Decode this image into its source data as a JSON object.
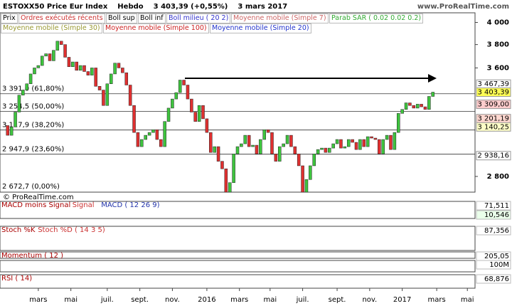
{
  "header": {
    "title": "ESTOXX50 Price Eur Index",
    "period": "Hebdo",
    "last": "3 403,39 (+0,55%)",
    "date": "3 mars 2017",
    "site": "www.ProRealTime.com"
  },
  "legend": {
    "row1": [
      "Prix",
      "Ordres exécutés récents",
      "Boll sup",
      "Boll inf",
      "Boll milieu ( 20 2)",
      "Moyenne mobile (Simple 7)",
      "Parab SAR ( 0.02 0.02 0.2)"
    ],
    "row2": [
      "Moyenne mobile (Simple 30)",
      "Moyenne mobile (Simple 100)",
      "Moyenne mobile (Simple 20)"
    ]
  },
  "watermark": "© ProRealTime.com",
  "chart_data": {
    "type": "candlestick",
    "log_scale": true,
    "close": [
      3150,
      3080,
      3140,
      3250,
      3380,
      3420,
      3470,
      3550,
      3600,
      3620,
      3700,
      3720,
      3660,
      3750,
      3830,
      3800,
      3690,
      3610,
      3650,
      3580,
      3620,
      3570,
      3540,
      3600,
      3450,
      3420,
      3300,
      3470,
      3550,
      3640,
      3600,
      3560,
      3460,
      3300,
      3100,
      3000,
      3050,
      3080,
      3100,
      3120,
      3050,
      3000,
      3180,
      3280,
      3350,
      3400,
      3500,
      3460,
      3350,
      3250,
      3180,
      3300,
      3200,
      3100,
      2960,
      3000,
      2900,
      2850,
      2700,
      2760,
      2950,
      3000,
      3020,
      3080,
      3000,
      3010,
      2950,
      3050,
      3120,
      3100,
      2950,
      2900,
      3000,
      3020,
      3080,
      3000,
      2950,
      2870,
      2700,
      2780,
      2870,
      2950,
      2980,
      2990,
      2960,
      2990,
      3020,
      3050,
      2990,
      3000,
      3050,
      3030,
      2980,
      3050,
      3000,
      3070,
      3060,
      3050,
      2950,
      3050,
      3080,
      2980,
      3100,
      3240,
      3270,
      3320,
      3300,
      3280,
      3310,
      3290,
      3270,
      3370,
      3403.39
    ],
    "xlim": [
      -1,
      123
    ],
    "xticks": [
      {
        "value": 9,
        "label": "mars"
      },
      {
        "value": 17.5,
        "label": "mai"
      },
      {
        "value": 27,
        "label": "juil."
      },
      {
        "value": 35.5,
        "label": "sept."
      },
      {
        "value": 44,
        "label": "nov."
      },
      {
        "value": 53,
        "label": "2016"
      },
      {
        "value": 61.5,
        "label": "mars"
      },
      {
        "value": 69.5,
        "label": "mai"
      },
      {
        "value": 78,
        "label": "juil."
      },
      {
        "value": 87,
        "label": "sept."
      },
      {
        "value": 95.5,
        "label": "nov."
      },
      {
        "value": 104,
        "label": "2017"
      },
      {
        "value": 113,
        "label": "mars"
      },
      {
        "value": 121,
        "label": "mai"
      }
    ],
    "ylim": [
      2700,
      4090
    ],
    "yticks": [
      {
        "value": 2800,
        "label": "2 800"
      },
      {
        "value": 3600,
        "label": "3 600"
      },
      {
        "value": 3800,
        "label": "3 800"
      },
      {
        "value": 4000,
        "label": "4 000"
      }
    ],
    "fib_levels": [
      {
        "value": 3391.0,
        "label": "3 391,0 (61,80%)"
      },
      {
        "value": 3254.5,
        "label": "3 254,5 (50,00%)"
      },
      {
        "value": 3117.9,
        "label": "3 117,9 (38,20%)"
      },
      {
        "value": 2947.9,
        "label": "2 947,9 (23,60%)"
      },
      {
        "value": 2672.7,
        "label": "2 672,7 (0,00%)"
      }
    ],
    "price_tags": [
      {
        "value": 3467.39,
        "label": "3 467,39",
        "color": "#ffffff"
      },
      {
        "value": 3403.39,
        "label": "3 403,39",
        "color": "#ffff55"
      },
      {
        "value": 3309.0,
        "label": "3 309,00",
        "color": "#ffcccc"
      },
      {
        "value": 3201.19,
        "label": "3 201,19",
        "color": "#ffd8d0"
      },
      {
        "value": 3140.25,
        "label": "3 140,25",
        "color": "#ffffc8"
      },
      {
        "value": 2938.16,
        "label": "2 938,16",
        "color": "#ffffff"
      }
    ]
  },
  "panels": [
    {
      "labels": [
        "MACD moins Signal",
        "Signal",
        "MACD ( 12 26 9)"
      ],
      "values": [
        "71,511",
        "10,546"
      ]
    },
    {
      "labels": [
        "Stoch %K",
        "Stoch %D ( 14 3 5)"
      ],
      "values": [
        "87,356"
      ]
    },
    {
      "labels": [
        "Momentum ( 12 )"
      ],
      "values": [
        "205,05"
      ]
    },
    {
      "labels": [],
      "values": [
        "100M"
      ]
    },
    {
      "labels": [
        "RSI ( 14)"
      ],
      "values": [
        "68,876"
      ]
    }
  ]
}
